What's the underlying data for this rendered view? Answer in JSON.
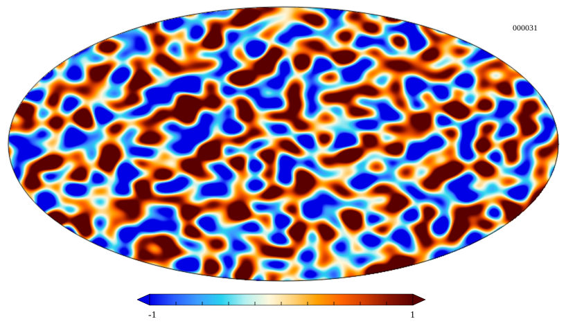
{
  "map": {
    "identifier": "000031",
    "projection": "mollweide",
    "colormap": [
      "#0000e6",
      "#2a5cff",
      "#3c9dff",
      "#28d2f0",
      "#b4f0f0",
      "#fff8dc",
      "#ffd27a",
      "#ffa000",
      "#ff6400",
      "#d23c00",
      "#8c1400",
      "#5a0000"
    ]
  },
  "colorbar": {
    "min_label": "-1",
    "max_label": "1",
    "min_value": -1,
    "max_value": 1
  }
}
